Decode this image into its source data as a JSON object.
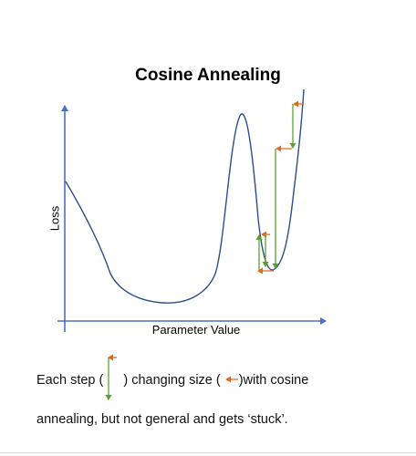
{
  "title": "Cosine Annealing",
  "axes": {
    "ylabel": "Loss",
    "xlabel": "Parameter Value"
  },
  "caption": {
    "line1_part1": "Each step (",
    "line1_part2": ")  changing size (",
    "line1_part3": ")with cosine",
    "line2": "annealing, but not general and gets ‘stuck’."
  },
  "colors": {
    "curve": "#2f4e8c",
    "axis": "#4a6fc7",
    "step_arrow": "#5aa02c",
    "size_arrow": "#e06a25"
  }
}
